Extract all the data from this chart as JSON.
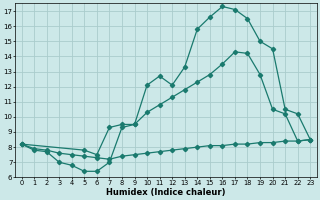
{
  "xlabel": "Humidex (Indice chaleur)",
  "bg_color": "#cce8e8",
  "grid_color": "#aacccc",
  "line_color": "#1a7a6e",
  "xlim": [
    -0.5,
    23.5
  ],
  "ylim": [
    6,
    17.5
  ],
  "xticks": [
    0,
    1,
    2,
    3,
    4,
    5,
    6,
    7,
    8,
    9,
    10,
    11,
    12,
    13,
    14,
    15,
    16,
    17,
    18,
    19,
    20,
    21,
    22,
    23
  ],
  "yticks": [
    6,
    7,
    8,
    9,
    10,
    11,
    12,
    13,
    14,
    15,
    16,
    17
  ],
  "line1_x": [
    0,
    1,
    2,
    3,
    4,
    5,
    6,
    7,
    8,
    9,
    10,
    11,
    12,
    13,
    14,
    15,
    16,
    17,
    18,
    19,
    20,
    21,
    22,
    23
  ],
  "line1_y": [
    8.2,
    7.8,
    7.7,
    7.0,
    6.8,
    6.4,
    6.4,
    7.0,
    9.3,
    9.5,
    12.1,
    12.7,
    12.1,
    13.3,
    15.8,
    16.6,
    17.3,
    17.1,
    16.5,
    15.0,
    14.5,
    10.5,
    10.2,
    8.5
  ],
  "line2_x": [
    0,
    5,
    6,
    7,
    8,
    9,
    10,
    11,
    12,
    13,
    14,
    15,
    16,
    17,
    18,
    19,
    20,
    21,
    22,
    23
  ],
  "line2_y": [
    8.2,
    7.8,
    7.5,
    9.3,
    9.5,
    9.5,
    10.3,
    10.8,
    11.3,
    11.8,
    12.3,
    12.8,
    13.5,
    14.3,
    14.2,
    12.8,
    10.5,
    10.2,
    8.4,
    8.5
  ],
  "line3_x": [
    0,
    1,
    2,
    3,
    4,
    5,
    6,
    7,
    8,
    9,
    10,
    11,
    12,
    13,
    14,
    15,
    16,
    17,
    18,
    19,
    20,
    21,
    22,
    23
  ],
  "line3_y": [
    8.2,
    7.9,
    7.8,
    7.6,
    7.5,
    7.4,
    7.3,
    7.2,
    7.4,
    7.5,
    7.6,
    7.7,
    7.8,
    7.9,
    8.0,
    8.1,
    8.1,
    8.2,
    8.2,
    8.3,
    8.3,
    8.4,
    8.4,
    8.5
  ]
}
